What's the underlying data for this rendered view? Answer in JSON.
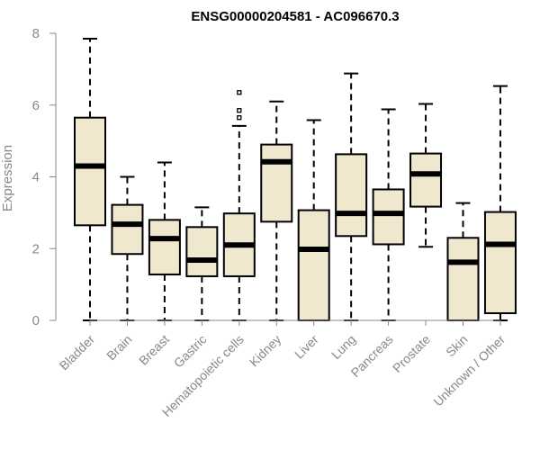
{
  "chart_data": {
    "type": "boxplot",
    "title": "ENSG00000204581 - AC096670.3",
    "xlabel": "",
    "ylabel": "Expression",
    "ylim": [
      0,
      8
    ],
    "yticks": [
      "0",
      "2",
      "4",
      "6",
      "8"
    ],
    "grid": false,
    "box_color": "#efe8cf",
    "categories": [
      "Bladder",
      "Brain",
      "Breast",
      "Gastric",
      "Hematopoietic cells",
      "Kidney",
      "Liver",
      "Lung",
      "Pancreas",
      "Prostate",
      "Skin",
      "Unknown / Other"
    ],
    "boxes": [
      {
        "whisker_low": 0.0,
        "q1": 2.65,
        "median": 4.3,
        "q3": 5.65,
        "whisker_high": 7.85,
        "outliers": []
      },
      {
        "whisker_low": 0.0,
        "q1": 1.85,
        "median": 2.68,
        "q3": 3.22,
        "whisker_high": 4.0,
        "outliers": []
      },
      {
        "whisker_low": 0.0,
        "q1": 1.28,
        "median": 2.28,
        "q3": 2.8,
        "whisker_high": 4.4,
        "outliers": []
      },
      {
        "whisker_low": 0.0,
        "q1": 1.23,
        "median": 1.68,
        "q3": 2.6,
        "whisker_high": 3.15,
        "outliers": []
      },
      {
        "whisker_low": 0.0,
        "q1": 1.23,
        "median": 2.1,
        "q3": 2.98,
        "whisker_high": 5.42,
        "outliers": [
          5.65,
          5.85,
          6.35
        ]
      },
      {
        "whisker_low": 0.0,
        "q1": 2.75,
        "median": 4.42,
        "q3": 4.9,
        "whisker_high": 6.1,
        "outliers": []
      },
      {
        "whisker_low": 0.0,
        "q1": 0.0,
        "median": 1.98,
        "q3": 3.07,
        "whisker_high": 5.58,
        "outliers": []
      },
      {
        "whisker_low": 0.0,
        "q1": 2.35,
        "median": 2.98,
        "q3": 4.63,
        "whisker_high": 6.88,
        "outliers": []
      },
      {
        "whisker_low": 0.0,
        "q1": 2.12,
        "median": 2.98,
        "q3": 3.65,
        "whisker_high": 5.88,
        "outliers": []
      },
      {
        "whisker_low": 2.05,
        "q1": 3.17,
        "median": 4.08,
        "q3": 4.65,
        "whisker_high": 6.03,
        "outliers": []
      },
      {
        "whisker_low": 0.0,
        "q1": 0.0,
        "median": 1.62,
        "q3": 2.3,
        "whisker_high": 3.27,
        "outliers": []
      },
      {
        "whisker_low": 0.0,
        "q1": 0.2,
        "median": 2.12,
        "q3": 3.02,
        "whisker_high": 6.53,
        "outliers": []
      }
    ]
  }
}
